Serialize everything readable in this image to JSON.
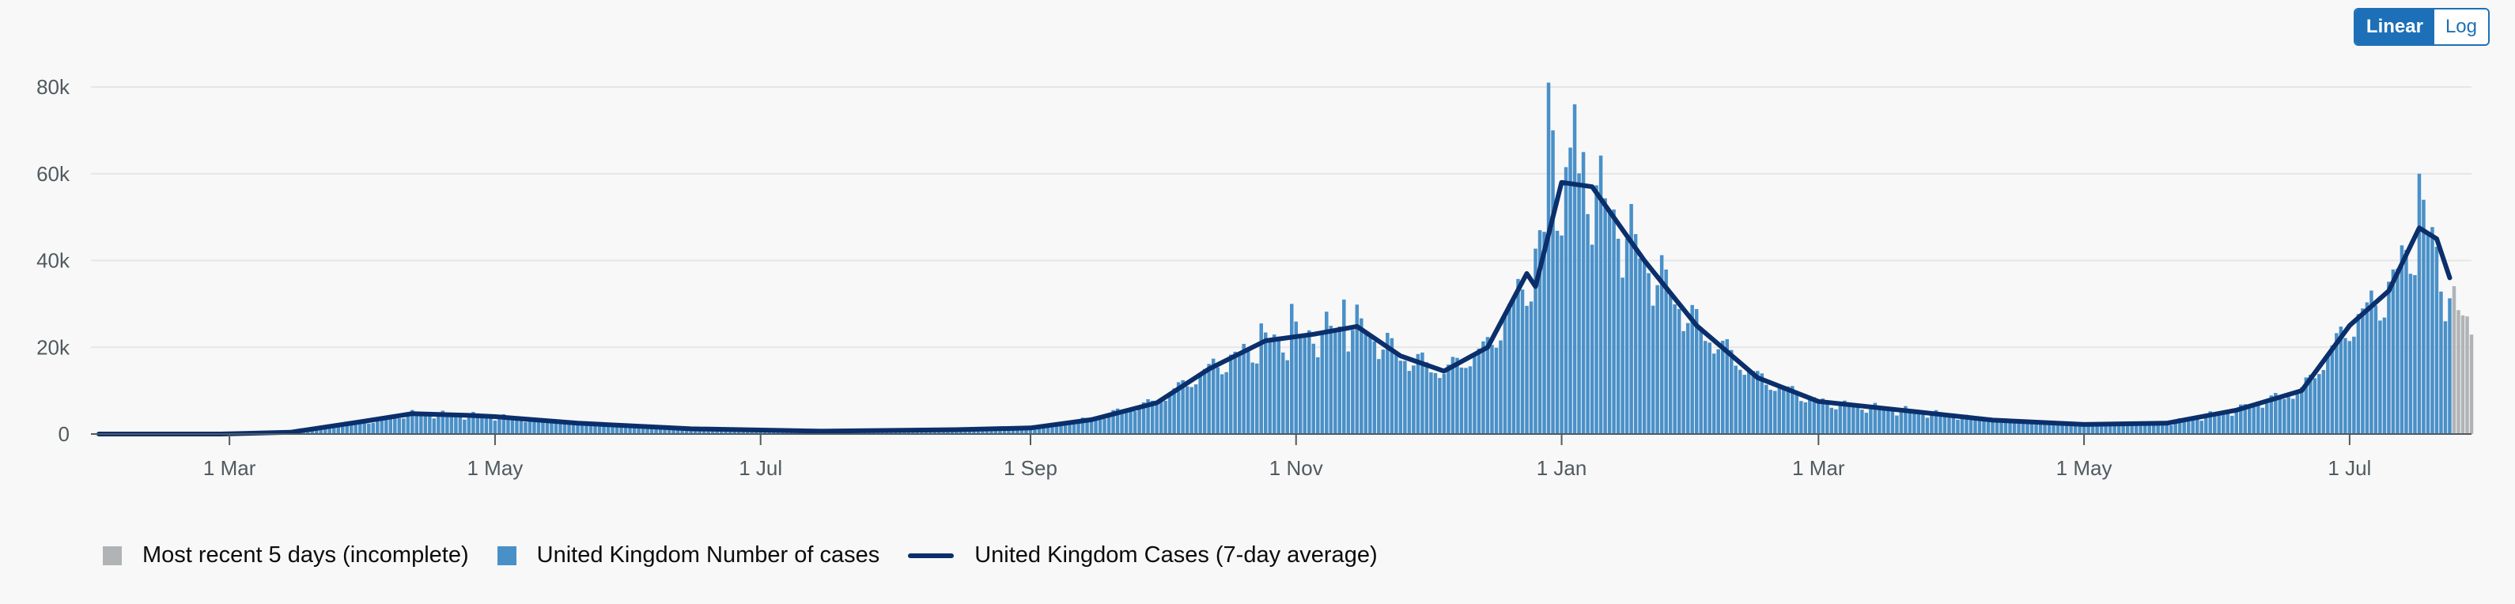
{
  "controls": {
    "scale_options": [
      {
        "label": "Linear",
        "active": true
      },
      {
        "label": "Log",
        "active": false
      }
    ]
  },
  "colors": {
    "bars": "#4a90c8",
    "bar_stroke": "#2f7bbf",
    "incomplete": "#b1b4b6",
    "line": "#0b2f6b",
    "grid": "#e6e6e6",
    "axis": "#505a5f"
  },
  "legend": [
    {
      "label": "Most recent 5 days (incomplete)",
      "kind": "square",
      "color": "#b1b4b6"
    },
    {
      "label": "United Kingdom Number of cases",
      "kind": "square",
      "color": "#4a90c8"
    },
    {
      "label": "United Kingdom Cases (7-day average)",
      "kind": "line",
      "color": "#0b2f6b"
    }
  ],
  "chart_data": {
    "type": "bar",
    "title": "",
    "xlabel": "",
    "ylabel": "",
    "x_start": "2020-01-31",
    "x_end": "2021-07-29",
    "x_ticks": [
      {
        "date": "2020-03-01",
        "label": "1 Mar"
      },
      {
        "date": "2020-05-01",
        "label": "1 May"
      },
      {
        "date": "2020-07-01",
        "label": "1 Jul"
      },
      {
        "date": "2020-09-01",
        "label": "1 Sep"
      },
      {
        "date": "2020-11-01",
        "label": "1 Nov"
      },
      {
        "date": "2021-01-01",
        "label": "1 Jan"
      },
      {
        "date": "2021-03-01",
        "label": "1 Mar"
      },
      {
        "date": "2021-05-01",
        "label": "1 May"
      },
      {
        "date": "2021-07-01",
        "label": "1 Jul"
      }
    ],
    "ylim": [
      0,
      80000
    ],
    "y_ticks": [
      {
        "value": 0,
        "label": "0"
      },
      {
        "value": 20000,
        "label": "20k"
      },
      {
        "value": 40000,
        "label": "40k"
      },
      {
        "value": 60000,
        "label": "60k"
      },
      {
        "value": 80000,
        "label": "80k"
      }
    ],
    "grid": true,
    "legend_position": "bottom-left",
    "incomplete_days": 5,
    "series": [
      {
        "name": "United Kingdom Number of cases",
        "type": "bar",
        "anchors": [
          {
            "date": "2020-01-31",
            "value": 0
          },
          {
            "date": "2020-02-28",
            "value": 10
          },
          {
            "date": "2020-03-15",
            "value": 300
          },
          {
            "date": "2020-03-31",
            "value": 2500
          },
          {
            "date": "2020-04-12",
            "value": 4900
          },
          {
            "date": "2020-04-25",
            "value": 4300
          },
          {
            "date": "2020-05-01",
            "value": 4000
          },
          {
            "date": "2020-05-20",
            "value": 2500
          },
          {
            "date": "2020-06-15",
            "value": 1200
          },
          {
            "date": "2020-07-15",
            "value": 650
          },
          {
            "date": "2020-08-15",
            "value": 1000
          },
          {
            "date": "2020-09-01",
            "value": 1400
          },
          {
            "date": "2020-09-15",
            "value": 3500
          },
          {
            "date": "2020-09-30",
            "value": 7500
          },
          {
            "date": "2020-10-12",
            "value": 15000
          },
          {
            "date": "2020-10-25",
            "value": 21000
          },
          {
            "date": "2020-11-05",
            "value": 23000
          },
          {
            "date": "2020-11-15",
            "value": 25000
          },
          {
            "date": "2020-11-25",
            "value": 18000
          },
          {
            "date": "2020-12-05",
            "value": 14500
          },
          {
            "date": "2020-12-15",
            "value": 20000
          },
          {
            "date": "2020-12-25",
            "value": 37000
          },
          {
            "date": "2021-01-01",
            "value": 58000
          },
          {
            "date": "2021-01-08",
            "value": 57000
          },
          {
            "date": "2021-01-20",
            "value": 40000
          },
          {
            "date": "2021-02-01",
            "value": 25000
          },
          {
            "date": "2021-02-15",
            "value": 13000
          },
          {
            "date": "2021-03-01",
            "value": 7500
          },
          {
            "date": "2021-03-20",
            "value": 5500
          },
          {
            "date": "2021-04-10",
            "value": 3200
          },
          {
            "date": "2021-05-01",
            "value": 2200
          },
          {
            "date": "2021-05-20",
            "value": 2500
          },
          {
            "date": "2021-06-05",
            "value": 5500
          },
          {
            "date": "2021-06-20",
            "value": 10000
          },
          {
            "date": "2021-07-01",
            "value": 25000
          },
          {
            "date": "2021-07-10",
            "value": 33000
          },
          {
            "date": "2021-07-17",
            "value": 48000
          },
          {
            "date": "2021-07-20",
            "value": 45000
          },
          {
            "date": "2021-07-24",
            "value": 30000
          },
          {
            "date": "2021-07-29",
            "value": 25000
          }
        ],
        "spikes": [
          {
            "date": "2020-10-24",
            "value": 25500
          },
          {
            "date": "2020-10-31",
            "value": 30000
          },
          {
            "date": "2020-11-12",
            "value": 31000
          },
          {
            "date": "2020-12-29",
            "value": 81000
          },
          {
            "date": "2020-12-30",
            "value": 70000
          },
          {
            "date": "2021-01-04",
            "value": 76000
          },
          {
            "date": "2021-01-06",
            "value": 65000
          },
          {
            "date": "2021-07-17",
            "value": 60000
          },
          {
            "date": "2021-07-18",
            "value": 54000
          }
        ]
      },
      {
        "name": "United Kingdom Cases (7-day average)",
        "type": "line",
        "points": [
          {
            "date": "2020-01-31",
            "value": 0
          },
          {
            "date": "2020-02-28",
            "value": 0
          },
          {
            "date": "2020-03-15",
            "value": 400
          },
          {
            "date": "2020-03-31",
            "value": 2800
          },
          {
            "date": "2020-04-12",
            "value": 4700
          },
          {
            "date": "2020-04-25",
            "value": 4300
          },
          {
            "date": "2020-05-01",
            "value": 4000
          },
          {
            "date": "2020-05-20",
            "value": 2500
          },
          {
            "date": "2020-06-15",
            "value": 1200
          },
          {
            "date": "2020-07-15",
            "value": 650
          },
          {
            "date": "2020-08-15",
            "value": 1000
          },
          {
            "date": "2020-09-01",
            "value": 1400
          },
          {
            "date": "2020-09-15",
            "value": 3300
          },
          {
            "date": "2020-09-30",
            "value": 7200
          },
          {
            "date": "2020-10-12",
            "value": 15000
          },
          {
            "date": "2020-10-25",
            "value": 21500
          },
          {
            "date": "2020-11-05",
            "value": 23000
          },
          {
            "date": "2020-11-15",
            "value": 24800
          },
          {
            "date": "2020-11-25",
            "value": 18000
          },
          {
            "date": "2020-12-05",
            "value": 14500
          },
          {
            "date": "2020-12-15",
            "value": 20000
          },
          {
            "date": "2020-12-24",
            "value": 37000
          },
          {
            "date": "2020-12-26",
            "value": 34000
          },
          {
            "date": "2021-01-01",
            "value": 58000
          },
          {
            "date": "2021-01-08",
            "value": 57000
          },
          {
            "date": "2021-01-20",
            "value": 40000
          },
          {
            "date": "2021-02-01",
            "value": 25000
          },
          {
            "date": "2021-02-15",
            "value": 13000
          },
          {
            "date": "2021-03-01",
            "value": 7500
          },
          {
            "date": "2021-03-20",
            "value": 5500
          },
          {
            "date": "2021-04-10",
            "value": 3200
          },
          {
            "date": "2021-05-01",
            "value": 2200
          },
          {
            "date": "2021-05-20",
            "value": 2500
          },
          {
            "date": "2021-06-05",
            "value": 5500
          },
          {
            "date": "2021-06-20",
            "value": 10000
          },
          {
            "date": "2021-07-01",
            "value": 25000
          },
          {
            "date": "2021-07-10",
            "value": 33000
          },
          {
            "date": "2021-07-17",
            "value": 47500
          },
          {
            "date": "2021-07-21",
            "value": 45000
          },
          {
            "date": "2021-07-24",
            "value": 36000
          }
        ]
      }
    ]
  }
}
